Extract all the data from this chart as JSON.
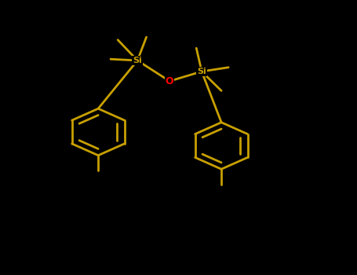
{
  "background_color": "#000000",
  "bond_color": "#c8a000",
  "oxygen_color": "#ff0000",
  "silicon_color": "#c8a000",
  "line_width": 2.0,
  "figsize": [
    4.55,
    3.5
  ],
  "dpi": 100,
  "si_label": "Si",
  "o_label": "O",
  "si1x": 0.385,
  "si1y": 0.78,
  "si2x": 0.565,
  "si2y": 0.74,
  "ox": 0.475,
  "oy": 0.705,
  "r_size": 0.085,
  "r1cx": 0.275,
  "r1cy": 0.52,
  "r2cx": 0.62,
  "r2cy": 0.47,
  "fontsize_si": 8,
  "fontsize_o": 9
}
